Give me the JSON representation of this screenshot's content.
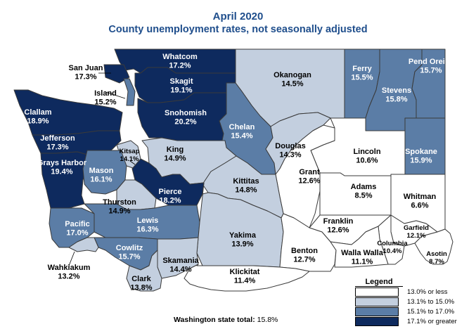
{
  "title": {
    "line1": "April 2020",
    "line2": "County unemployment rates, not seasonally adjusted"
  },
  "colors": {
    "low": "#ffffff",
    "mid_low": "#c3cfdf",
    "mid_high": "#5b7da6",
    "high": "#0e2a5e",
    "border": "#3a3a3a",
    "title": "#1f4e8c"
  },
  "legend": {
    "title": "Legend",
    "items": [
      {
        "label": "13.0% or less",
        "class": "low"
      },
      {
        "label": "13.1% to 15.0%",
        "class": "mid_low"
      },
      {
        "label": "15.1% to 17.0%",
        "class": "mid_high"
      },
      {
        "label": "17.1% or greater",
        "class": "high"
      }
    ]
  },
  "state_total": {
    "label": "Washington state total:",
    "value": "15.8%"
  },
  "counties": [
    {
      "id": "whatcom",
      "name": "Whatcom",
      "rate": "17.2%",
      "class": "high"
    },
    {
      "id": "okanogan",
      "name": "Okanogan",
      "rate": "14.5%",
      "class": "mid_low"
    },
    {
      "id": "ferry",
      "name": "Ferry",
      "rate": "15.5%",
      "class": "mid_high"
    },
    {
      "id": "stevens",
      "name": "Stevens",
      "rate": "15.8%",
      "class": "mid_high"
    },
    {
      "id": "pend-oreille",
      "name": "Pend Oreille",
      "rate": "15.7%",
      "class": "mid_high"
    },
    {
      "id": "san-juan",
      "name": "San Juan",
      "rate": "17.3%",
      "class": "high"
    },
    {
      "id": "island",
      "name": "Island",
      "rate": "15.2%",
      "class": "mid_high"
    },
    {
      "id": "skagit",
      "name": "Skagit",
      "rate": "19.1%",
      "class": "high"
    },
    {
      "id": "clallam",
      "name": "Clallam",
      "rate": "18.9%",
      "class": "high"
    },
    {
      "id": "snohomish",
      "name": "Snohomish",
      "rate": "20.2%",
      "class": "high"
    },
    {
      "id": "chelan",
      "name": "Chelan",
      "rate": "15.4%",
      "class": "mid_high"
    },
    {
      "id": "jefferson",
      "name": "Jefferson",
      "rate": "17.3%",
      "class": "high"
    },
    {
      "id": "douglas",
      "name": "Douglas",
      "rate": "14.3%",
      "class": "mid_low"
    },
    {
      "id": "lincoln",
      "name": "Lincoln",
      "rate": "10.6%",
      "class": "low"
    },
    {
      "id": "spokane",
      "name": "Spokane",
      "rate": "15.9%",
      "class": "mid_high"
    },
    {
      "id": "king",
      "name": "King",
      "rate": "14.9%",
      "class": "mid_low"
    },
    {
      "id": "kitsap",
      "name": "Kitsap",
      "rate": "14.1%",
      "class": "mid_low"
    },
    {
      "id": "grays-harbor",
      "name": "Grays Harbor",
      "rate": "19.4%",
      "class": "high"
    },
    {
      "id": "mason",
      "name": "Mason",
      "rate": "16.1%",
      "class": "mid_high"
    },
    {
      "id": "grant",
      "name": "Grant",
      "rate": "12.6%",
      "class": "low"
    },
    {
      "id": "kittitas",
      "name": "Kittitas",
      "rate": "14.8%",
      "class": "mid_low"
    },
    {
      "id": "adams",
      "name": "Adams",
      "rate": "8.5%",
      "class": "low"
    },
    {
      "id": "whitman",
      "name": "Whitman",
      "rate": "6.6%",
      "class": "low"
    },
    {
      "id": "pierce",
      "name": "Pierce",
      "rate": "18.2%",
      "class": "high"
    },
    {
      "id": "thurston",
      "name": "Thurston",
      "rate": "14.9%",
      "class": "mid_low"
    },
    {
      "id": "pacific",
      "name": "Pacific",
      "rate": "17.0%",
      "class": "mid_high"
    },
    {
      "id": "lewis",
      "name": "Lewis",
      "rate": "16.3%",
      "class": "mid_high"
    },
    {
      "id": "franklin",
      "name": "Franklin",
      "rate": "12.6%",
      "class": "low"
    },
    {
      "id": "garfield",
      "name": "Garfield",
      "rate": "12.1%",
      "class": "low"
    },
    {
      "id": "yakima",
      "name": "Yakima",
      "rate": "13.9%",
      "class": "mid_low"
    },
    {
      "id": "columbia",
      "name": "Columbia",
      "rate": "10.4%",
      "class": "low"
    },
    {
      "id": "cowlitz",
      "name": "Cowlitz",
      "rate": "15.7%",
      "class": "mid_high"
    },
    {
      "id": "benton",
      "name": "Benton",
      "rate": "12.7%",
      "class": "low"
    },
    {
      "id": "walla-walla",
      "name": "Walla Walla",
      "rate": "11.1%",
      "class": "low"
    },
    {
      "id": "asotin",
      "name": "Asotin",
      "rate": "8.7%",
      "class": "low"
    },
    {
      "id": "skamania",
      "name": "Skamania",
      "rate": "14.4%",
      "class": "mid_low"
    },
    {
      "id": "wahkiakum",
      "name": "Wahkiakum",
      "rate": "13.2%",
      "class": "mid_low"
    },
    {
      "id": "clark",
      "name": "Clark",
      "rate": "13.8%",
      "class": "mid_low"
    },
    {
      "id": "klickitat",
      "name": "Klickitat",
      "rate": "11.4%",
      "class": "low"
    }
  ]
}
